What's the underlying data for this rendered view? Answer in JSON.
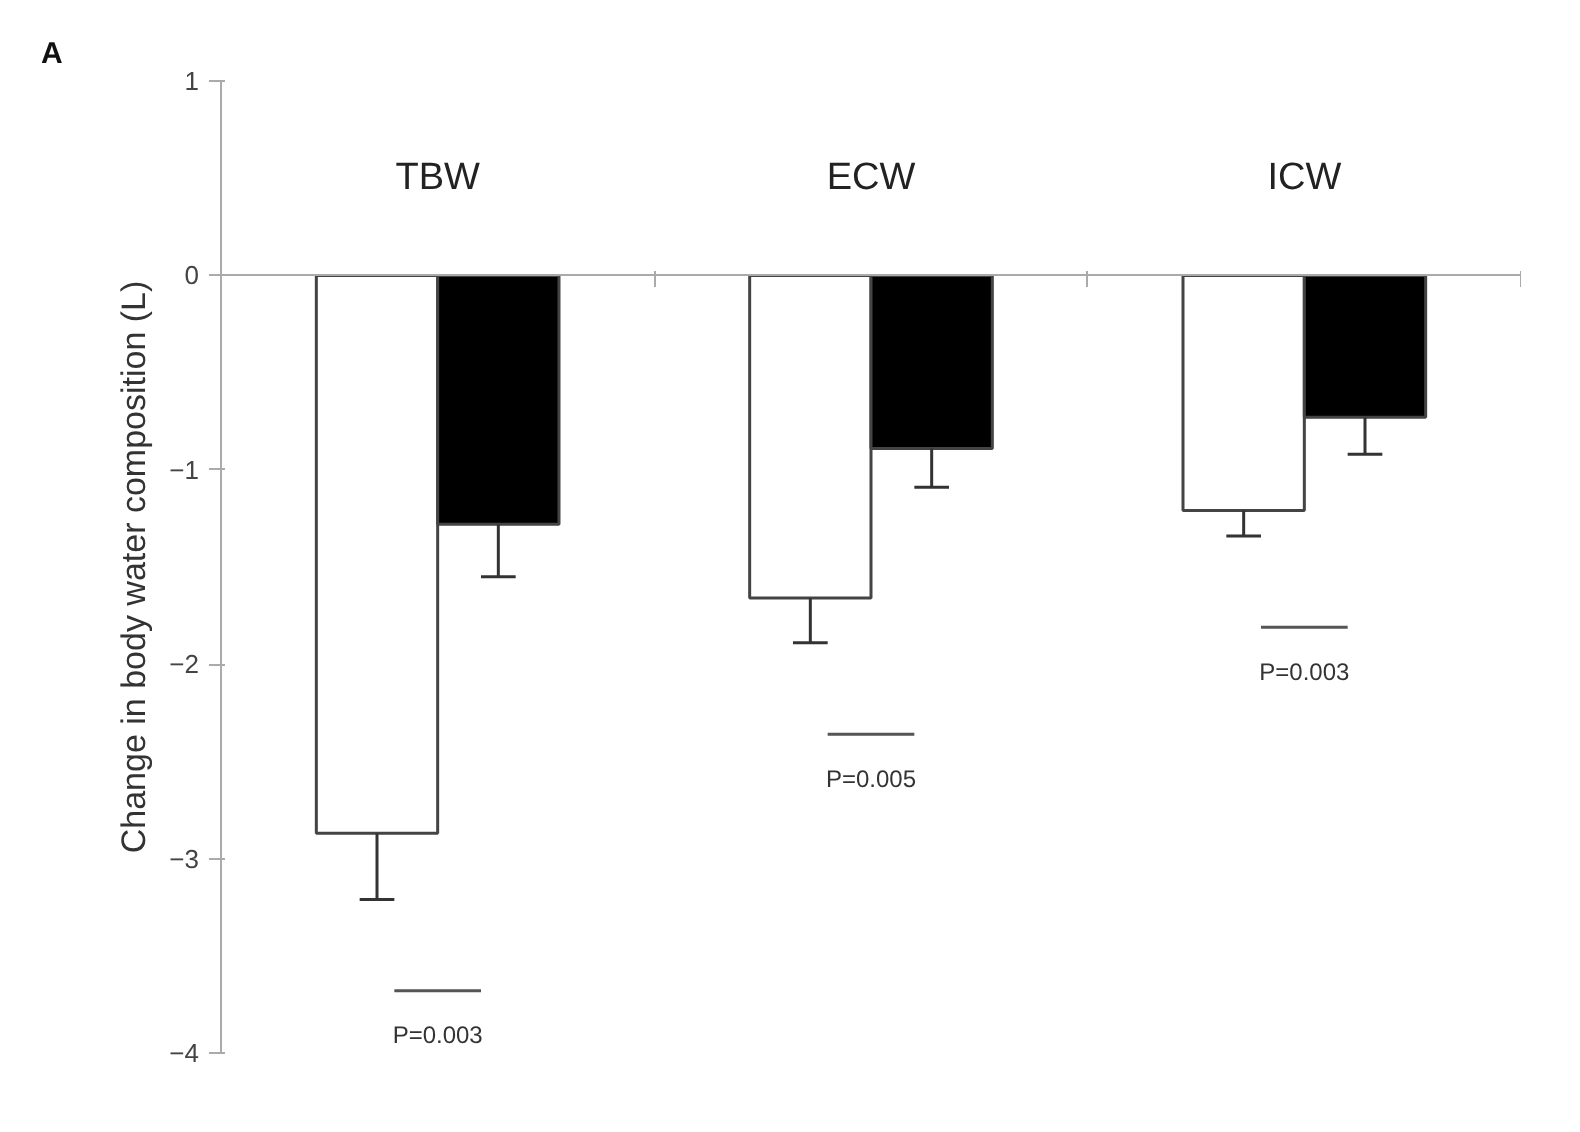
{
  "chart_data": {
    "type": "bar",
    "ylabel": "Change in body water composition (L)",
    "categories": [
      "TBW",
      "ECW",
      "ICW"
    ],
    "series": [
      {
        "color": "#ffffff",
        "values": [
          -2.87,
          -1.66,
          -1.21
        ],
        "errors": [
          [
            -3.21,
            -2.87
          ],
          [
            -1.89,
            -1.66
          ],
          [
            -1.34,
            -1.21
          ]
        ]
      },
      {
        "color": "#000000",
        "values": [
          -1.28,
          -0.89,
          -0.73
        ],
        "errors": [
          [
            -1.55,
            -1.28
          ],
          [
            -1.09,
            -0.89
          ],
          [
            -0.92,
            -0.73
          ]
        ]
      }
    ],
    "ylim": [
      -4,
      1
    ],
    "yticks": [
      -4,
      -3,
      -2,
      -1,
      0,
      1
    ],
    "grid": false,
    "annotations": [
      "A",
      "P=0.003",
      "P=0.005",
      "P=0.003"
    ]
  }
}
